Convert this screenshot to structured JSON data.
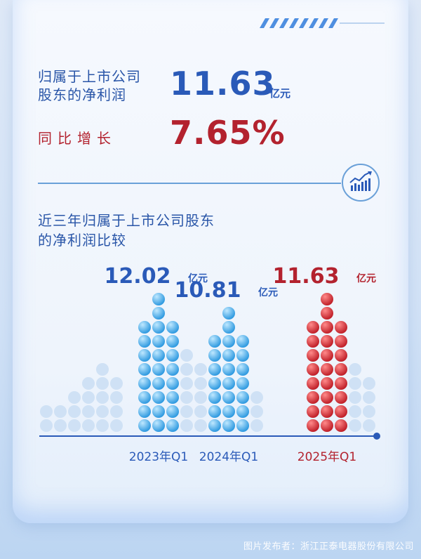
{
  "headline": {
    "label_line1": "归属于上市公司",
    "label_line2": "股东的净利润",
    "value": "11.63",
    "unit": "亿元",
    "growth_label": "同比增长",
    "growth_value": "7.65%"
  },
  "section": {
    "title_line1": "近三年归属于上市公司股东",
    "title_line2": "的净利润比较"
  },
  "chart_data": {
    "type": "bar",
    "categories": [
      "2023年Q1",
      "2024年Q1",
      "2025年Q1"
    ],
    "values": [
      12.02,
      10.81,
      11.63
    ],
    "value_labels": [
      "12.02",
      "10.81",
      "11.63"
    ],
    "unit": "亿元",
    "colors": {
      "2023年Q1": "#3aa6e6",
      "2024年Q1": "#3aa6e6",
      "2025年Q1": "#c8242e"
    },
    "highlight_category": "2025年Q1"
  },
  "footer": {
    "credit": "图片发布者：浙江正泰电器股份有限公司"
  },
  "colors": {
    "primary_blue": "#2a5ab8",
    "accent_red": "#b3222e",
    "dot_light": "#c9ddf4"
  }
}
